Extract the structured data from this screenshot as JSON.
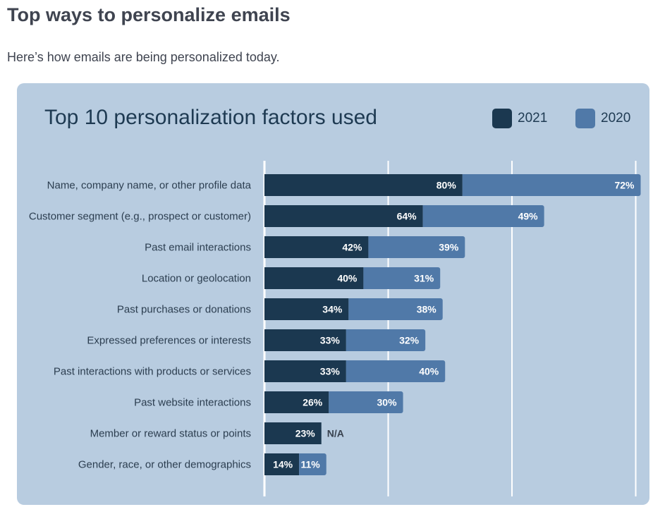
{
  "page": {
    "title": "Top ways to personalize emails",
    "subtitle": "Here’s how emails are being personalized today."
  },
  "colors": {
    "series_2021": "#1b3850",
    "series_2020": "#5079a8",
    "card_background": "#b8cce0",
    "gridline": "#ffffff"
  },
  "chart_data": {
    "type": "bar",
    "orientation": "horizontal",
    "stacked": true,
    "title": "Top 10 personalization factors used",
    "legend_position": "top-right",
    "grid": true,
    "xlim": [
      0,
      150
    ],
    "categories": [
      "Name, company name, or other profile data",
      "Customer segment (e.g., prospect or customer)",
      "Past email interactions",
      "Location or geolocation",
      "Past purchases or donations",
      "Expressed preferences or interests",
      "Past interactions with products or services",
      "Past website interactions",
      "Member or reward status or points",
      "Gender, race, or other demographics"
    ],
    "series": [
      {
        "name": "2021",
        "values": [
          80,
          64,
          42,
          40,
          34,
          33,
          33,
          26,
          23,
          14
        ],
        "labels": [
          "80%",
          "64%",
          "42%",
          "40%",
          "34%",
          "33%",
          "33%",
          "26%",
          "23%",
          "14%"
        ]
      },
      {
        "name": "2020",
        "values": [
          72,
          49,
          39,
          31,
          38,
          32,
          40,
          30,
          null,
          11
        ],
        "labels": [
          "72%",
          "49%",
          "39%",
          "31%",
          "38%",
          "32%",
          "40%",
          "30%",
          "N/A",
          "11%"
        ]
      }
    ]
  }
}
